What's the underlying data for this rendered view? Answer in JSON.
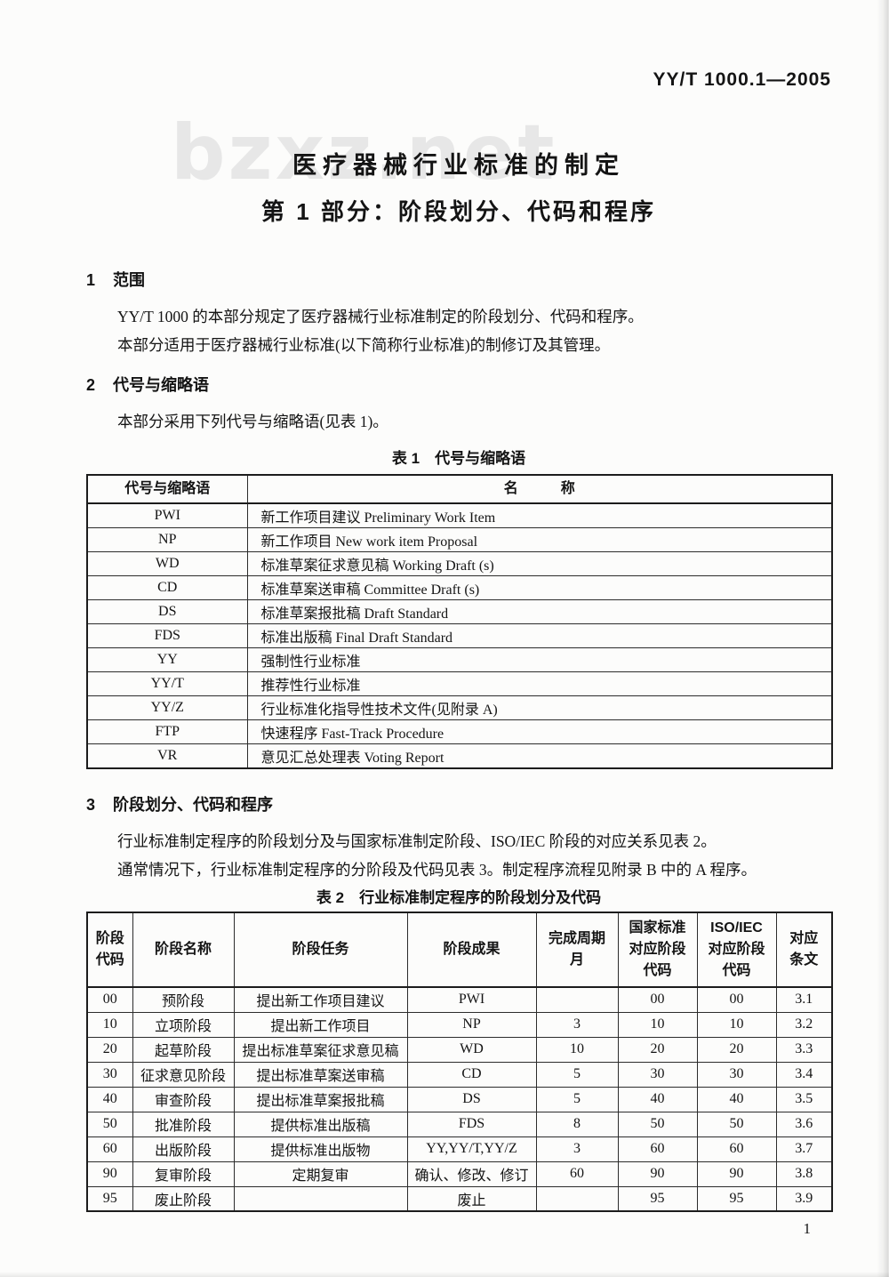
{
  "doc": {
    "number": "YY/T 1000.1—2005",
    "watermark": "bzxz.net",
    "page_number": "1"
  },
  "title": {
    "line1": "医疗器械行业标准的制定",
    "line2": "第 1 部分：阶段划分、代码和程序"
  },
  "section1": {
    "number": "1",
    "heading": "范围",
    "p1": "YY/T 1000 的本部分规定了医疗器械行业标准制定的阶段划分、代码和程序。",
    "p2": "本部分适用于医疗器械行业标准(以下简称行业标准)的制修订及其管理。"
  },
  "section2": {
    "number": "2",
    "heading": "代号与缩略语",
    "p1": "本部分采用下列代号与缩略语(见表 1)。"
  },
  "section3": {
    "number": "3",
    "heading": "阶段划分、代码和程序",
    "p1": "行业标准制定程序的阶段划分及与国家标准制定阶段、ISO/IEC 阶段的对应关系见表 2。",
    "p2": "通常情况下，行业标准制定程序的分阶段及代码见表 3。制定程序流程见附录 B 中的 A 程序。"
  },
  "table1": {
    "caption": "表 1　代号与缩略语",
    "headers": [
      "代号与缩略语",
      "名　　　称"
    ],
    "rows": [
      [
        "PWI",
        "新工作项目建议 Preliminary Work Item"
      ],
      [
        "NP",
        "新工作项目 New work item Proposal"
      ],
      [
        "WD",
        "标准草案征求意见稿 Working Draft (s)"
      ],
      [
        "CD",
        "标准草案送审稿 Committee Draft (s)"
      ],
      [
        "DS",
        "标准草案报批稿 Draft Standard"
      ],
      [
        "FDS",
        "标准出版稿 Final Draft Standard"
      ],
      [
        "YY",
        "强制性行业标准"
      ],
      [
        "YY/T",
        "推荐性行业标准"
      ],
      [
        "YY/Z",
        "行业标准化指导性技术文件(见附录 A)"
      ],
      [
        "FTP",
        "快速程序 Fast-Track Procedure"
      ],
      [
        "VR",
        "意见汇总处理表 Voting Report"
      ]
    ]
  },
  "table2": {
    "caption": "表 2　行业标准制定程序的阶段划分及代码",
    "headers": [
      "阶段\n代码",
      "阶段名称",
      "阶段任务",
      "阶段成果",
      "完成周期\n月",
      "国家标准\n对应阶段\n代码",
      "ISO/IEC\n对应阶段\n代码",
      "对应\n条文"
    ],
    "rows": [
      [
        "00",
        "预阶段",
        "提出新工作项目建议",
        "PWI",
        "",
        "00",
        "00",
        "3.1"
      ],
      [
        "10",
        "立项阶段",
        "提出新工作项目",
        "NP",
        "3",
        "10",
        "10",
        "3.2"
      ],
      [
        "20",
        "起草阶段",
        "提出标准草案征求意见稿",
        "WD",
        "10",
        "20",
        "20",
        "3.3"
      ],
      [
        "30",
        "征求意见阶段",
        "提出标准草案送审稿",
        "CD",
        "5",
        "30",
        "30",
        "3.4"
      ],
      [
        "40",
        "审查阶段",
        "提出标准草案报批稿",
        "DS",
        "5",
        "40",
        "40",
        "3.5"
      ],
      [
        "50",
        "批准阶段",
        "提供标准出版稿",
        "FDS",
        "8",
        "50",
        "50",
        "3.6"
      ],
      [
        "60",
        "出版阶段",
        "提供标准出版物",
        "YY,YY/T,YY/Z",
        "3",
        "60",
        "60",
        "3.7"
      ],
      [
        "90",
        "复审阶段",
        "定期复审",
        "确认、修改、修订",
        "60",
        "90",
        "90",
        "3.8"
      ],
      [
        "95",
        "废止阶段",
        "",
        "废止",
        "",
        "95",
        "95",
        "3.9"
      ]
    ]
  }
}
